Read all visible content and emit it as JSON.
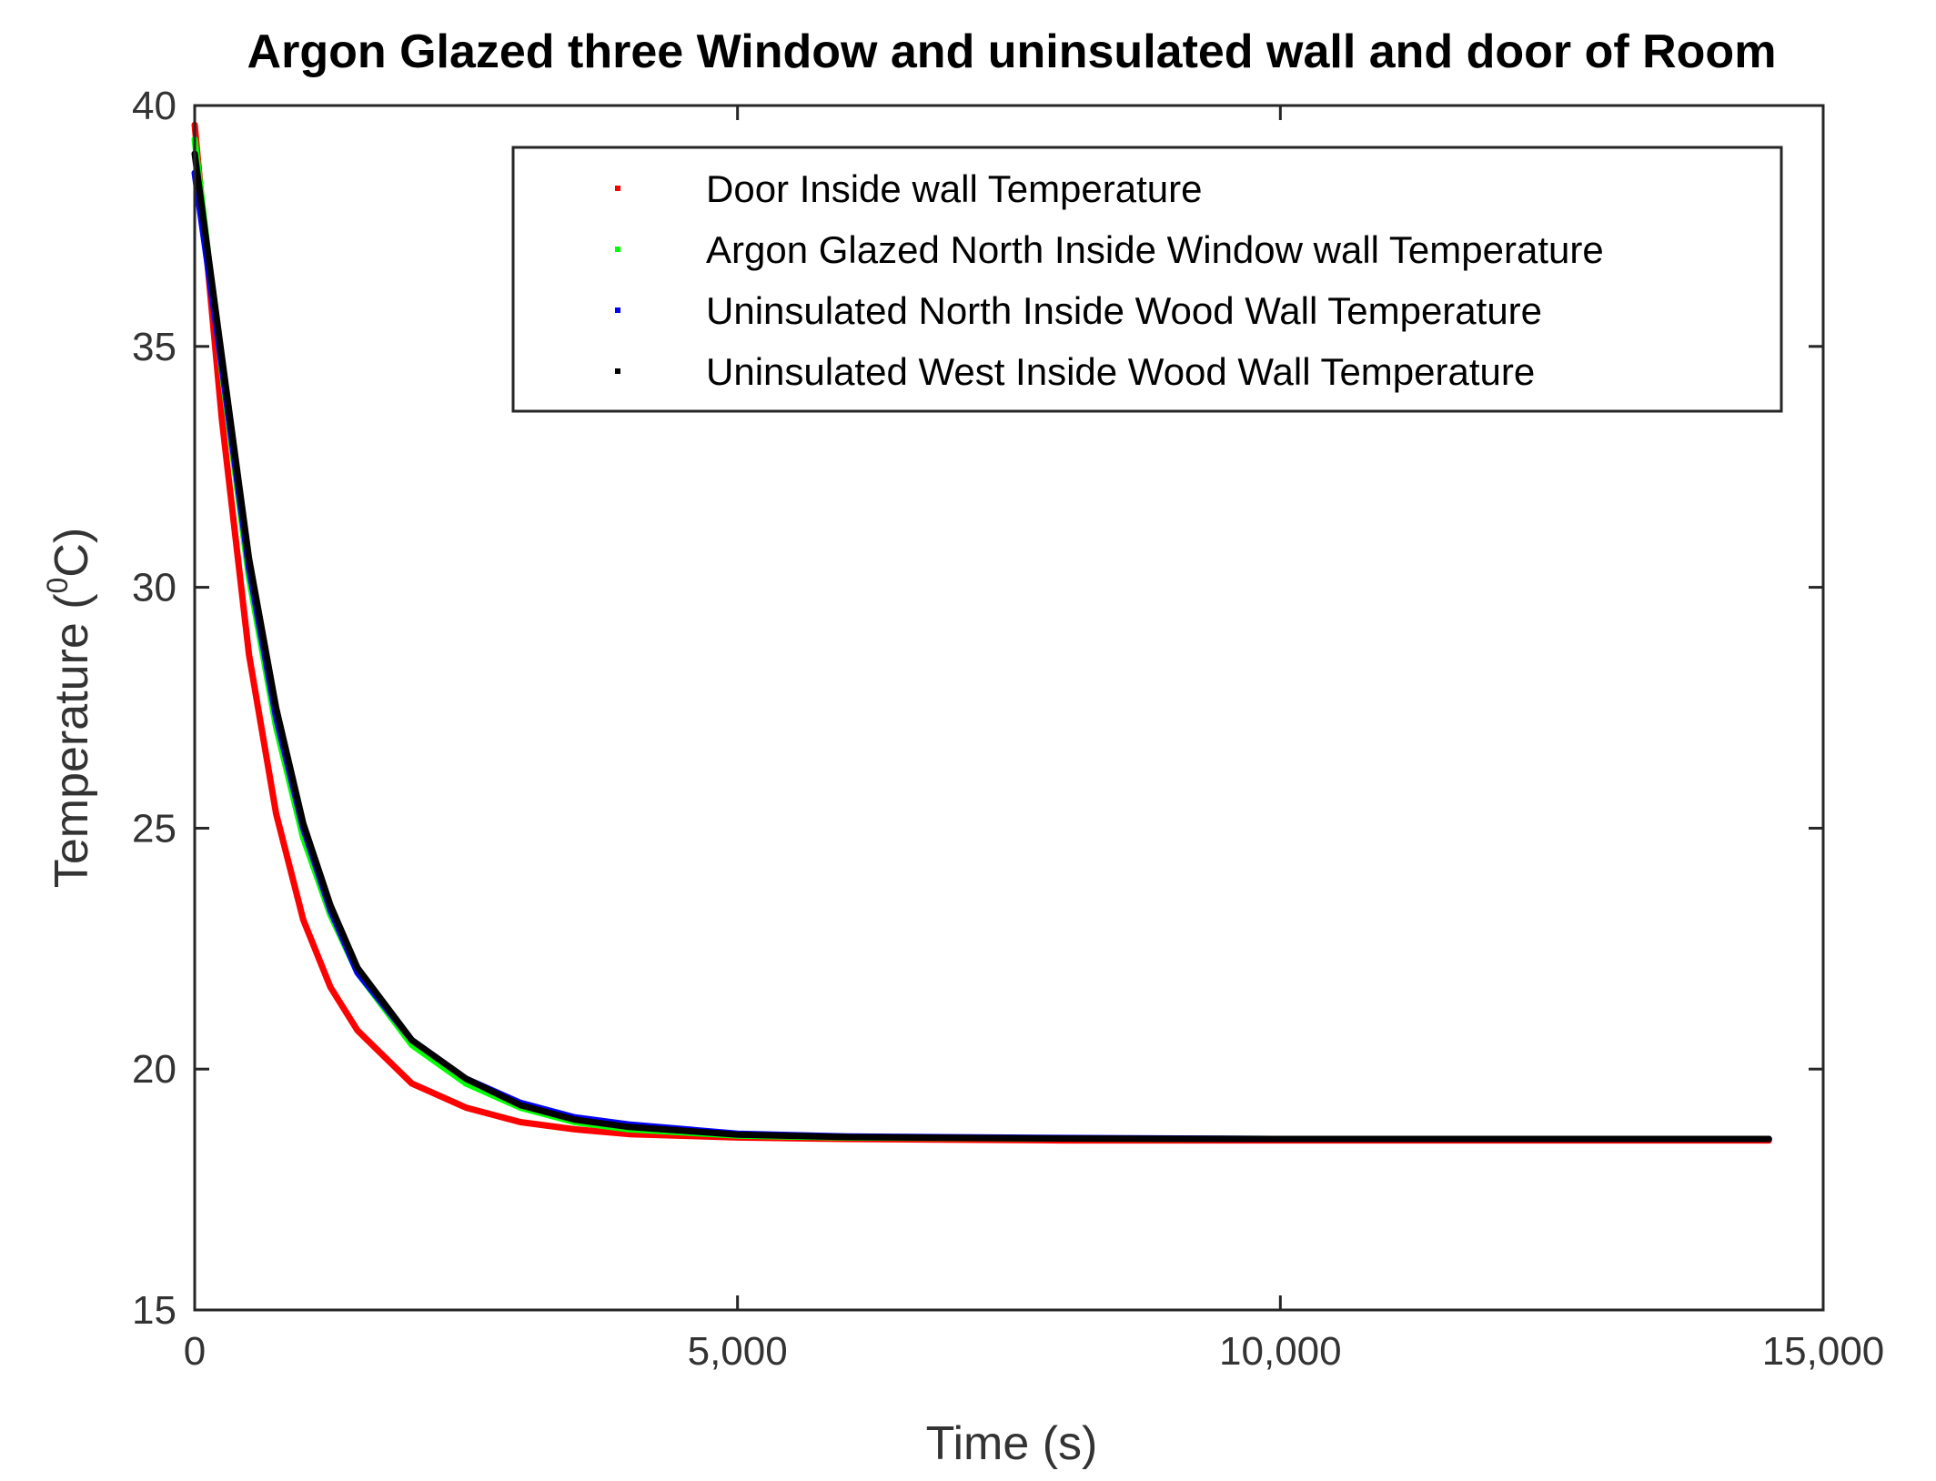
{
  "chart_data": {
    "type": "line",
    "title": "Argon Glazed three Window and uninsulated wall and door of Room",
    "xlabel": "Time (s)",
    "ylabel_main": "Temperature (",
    "ylabel_sup": "0",
    "ylabel_tail": "C)",
    "xlim": [
      0,
      15000
    ],
    "ylim": [
      15,
      40
    ],
    "xticks": [
      0,
      5000,
      10000,
      15000
    ],
    "xtick_labels": [
      "0",
      "5,000",
      "10,000",
      "15,000"
    ],
    "yticks": [
      15,
      20,
      25,
      30,
      35,
      40
    ],
    "ytick_labels": [
      "15",
      "20",
      "25",
      "30",
      "35",
      "40"
    ],
    "grid": false,
    "legend_position": "top-right",
    "series": [
      {
        "name": "Door Inside wall Temperature",
        "color": "#ff0000",
        "x": [
          0,
          250,
          500,
          750,
          1000,
          1250,
          1500,
          2000,
          2500,
          3000,
          3500,
          4000,
          5000,
          6000,
          8000,
          10000,
          12000,
          14500
        ],
        "y": [
          39.6,
          33.5,
          28.6,
          25.3,
          23.1,
          21.7,
          20.8,
          19.7,
          19.2,
          18.9,
          18.75,
          18.65,
          18.58,
          18.55,
          18.52,
          18.52,
          18.52,
          18.52
        ]
      },
      {
        "name": "Argon Glazed North Inside Window wall Temperature",
        "color": "#00ff00",
        "x": [
          0,
          250,
          500,
          750,
          1000,
          1250,
          1500,
          2000,
          2500,
          3000,
          3500,
          4000,
          5000,
          6000,
          8000,
          10000,
          12000,
          14500
        ],
        "y": [
          39.3,
          34.5,
          30.2,
          27.1,
          24.8,
          23.2,
          22.0,
          20.5,
          19.7,
          19.2,
          18.9,
          18.75,
          18.62,
          18.58,
          18.56,
          18.55,
          18.55,
          18.55
        ]
      },
      {
        "name": "Uninsulated North Inside Wood Wall Temperature",
        "color": "#0000ff",
        "x": [
          0,
          250,
          500,
          750,
          1000,
          1250,
          1500,
          2000,
          2500,
          3000,
          3500,
          4000,
          5000,
          6000,
          8000,
          10000,
          12000,
          14500
        ],
        "y": [
          38.6,
          34.6,
          30.4,
          27.3,
          25.0,
          23.3,
          22.0,
          20.6,
          19.8,
          19.3,
          19.0,
          18.85,
          18.66,
          18.6,
          18.57,
          18.55,
          18.55,
          18.55
        ]
      },
      {
        "name": "Uninsulated West Inside Wood Wall Temperature",
        "color": "#000000",
        "x": [
          0,
          250,
          500,
          750,
          1000,
          1250,
          1500,
          2000,
          2500,
          3000,
          3500,
          4000,
          5000,
          6000,
          8000,
          10000,
          12000,
          14500
        ],
        "y": [
          39.0,
          34.8,
          30.6,
          27.5,
          25.1,
          23.4,
          22.1,
          20.6,
          19.8,
          19.25,
          18.95,
          18.8,
          18.64,
          18.59,
          18.56,
          18.55,
          18.55,
          18.55
        ]
      }
    ]
  }
}
